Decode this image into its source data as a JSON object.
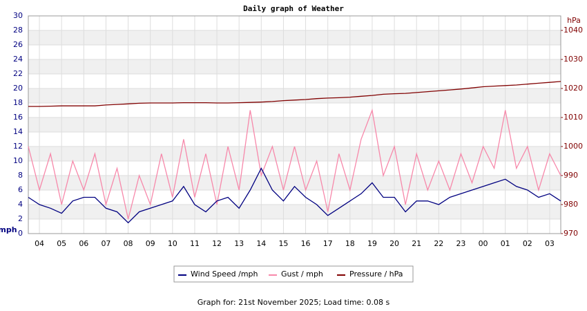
{
  "chart_data": {
    "type": "line",
    "title": "Daily graph of Weather",
    "y_label": "mph",
    "y2_label": "hPa",
    "x": [
      3.5,
      4,
      4.5,
      5,
      5.5,
      6,
      6.5,
      7,
      7.5,
      8,
      8.5,
      9,
      9.5,
      10,
      10.5,
      11,
      11.5,
      12,
      12.5,
      13,
      13.5,
      14,
      14.5,
      15,
      15.5,
      16,
      16.5,
      17,
      17.5,
      18,
      18.5,
      19,
      19.5,
      20,
      20.5,
      21,
      21.5,
      22,
      22.5,
      23,
      23.5,
      24,
      24.5,
      25,
      25.5,
      26,
      26.5,
      27,
      27.5
    ],
    "xlim": [
      3.5,
      27.5
    ],
    "xticks": [
      {
        "value": 4,
        "label": "04"
      },
      {
        "value": 5,
        "label": "05"
      },
      {
        "value": 6,
        "label": "06"
      },
      {
        "value": 7,
        "label": "07"
      },
      {
        "value": 8,
        "label": "08"
      },
      {
        "value": 9,
        "label": "09"
      },
      10,
      11,
      12,
      13,
      14,
      15,
      16,
      17,
      18,
      19,
      20,
      21,
      22,
      23,
      {
        "value": 24,
        "label": "00"
      },
      {
        "value": 25,
        "label": "01"
      },
      {
        "value": 26,
        "label": "02"
      },
      {
        "value": 27,
        "label": "03"
      }
    ],
    "ylim": [
      0,
      30
    ],
    "yticks": [
      0,
      2,
      4,
      6,
      8,
      10,
      12,
      14,
      16,
      18,
      20,
      22,
      24,
      26,
      28,
      30
    ],
    "y2lim": [
      970,
      1045
    ],
    "y2ticks": [
      970,
      980,
      990,
      1000,
      1010,
      1020,
      1030,
      1040
    ],
    "grid": true,
    "legend": "bottom",
    "series": [
      {
        "name": "Wind Speed /mph",
        "color": "#000080",
        "values": [
          5,
          4,
          3.5,
          2.8,
          4.5,
          5,
          5,
          3.5,
          3,
          1.5,
          3,
          3.5,
          4,
          4.5,
          6.5,
          4,
          3,
          4.5,
          5,
          3.5,
          6,
          9,
          6,
          4.5,
          6.5,
          5,
          4,
          2.5,
          3.5,
          4.5,
          5.5,
          7,
          5,
          5,
          3,
          4.5,
          4.5,
          4,
          5,
          5.5,
          6,
          6.5,
          7,
          7.5,
          6.5,
          6,
          5,
          5.5,
          4.5
        ]
      },
      {
        "name": "Gust / mph",
        "color": "#f788aa",
        "values": [
          12,
          6,
          11,
          4,
          10,
          6,
          11,
          4,
          9,
          2,
          8,
          4,
          11,
          5,
          13,
          5,
          11,
          4,
          12,
          6,
          17,
          8,
          12,
          6,
          12,
          6,
          10,
          3,
          11,
          6,
          13,
          17,
          8,
          12,
          4,
          11,
          6,
          10,
          6,
          11,
          7,
          12,
          9,
          17,
          9,
          12,
          6,
          11,
          8
        ]
      },
      {
        "name": "Pressure / hPa",
        "color": "#800000",
        "axis": "y2",
        "values": [
          1013.8,
          1013.8,
          1013.9,
          1014,
          1014,
          1014,
          1014,
          1014.3,
          1014.5,
          1014.7,
          1014.9,
          1015,
          1015,
          1015,
          1015.1,
          1015.1,
          1015.1,
          1015,
          1015,
          1015.1,
          1015.2,
          1015.3,
          1015.5,
          1015.8,
          1016,
          1016.2,
          1016.5,
          1016.7,
          1016.8,
          1017,
          1017.3,
          1017.6,
          1018,
          1018.2,
          1018.3,
          1018.6,
          1018.9,
          1019.2,
          1019.5,
          1019.8,
          1020.2,
          1020.6,
          1020.8,
          1021,
          1021.2,
          1021.5,
          1021.8,
          1022.1,
          1022.4
        ]
      }
    ],
    "footer": "Graph for: 21st November 2025; Load time: 0.08 s"
  }
}
